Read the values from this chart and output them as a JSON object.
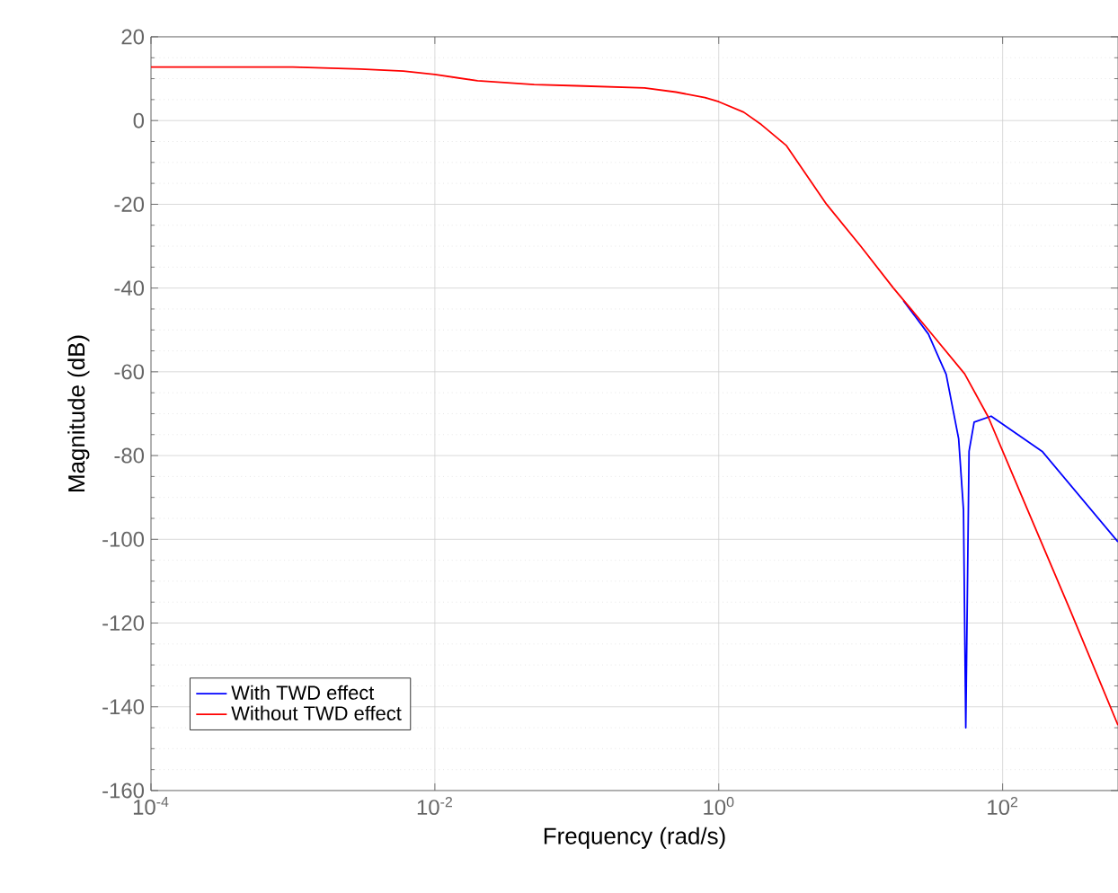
{
  "chart_data": {
    "type": "line",
    "xlabel": "Frequency  (rad/s)",
    "ylabel": "Magnitude (dB)",
    "log": "x",
    "grid": true,
    "legend": "bottom left",
    "line_style": "solid",
    "marker": "none",
    "xlim": [
      0.0001,
      650
    ],
    "ylim": [
      -160,
      20
    ],
    "xticks": [
      {
        "value": 0.0001,
        "label": "10$^{-4}$"
      },
      {
        "value": 0.01,
        "label": "10$^{-2}$"
      },
      {
        "value": 1,
        "label": "10$^{0}$"
      },
      {
        "value": 100,
        "label": "10$^{2}$"
      }
    ],
    "yticks": [
      -160,
      -140,
      -120,
      -100,
      -80,
      -60,
      -40,
      -20,
      0,
      20
    ],
    "series": [
      {
        "name": "With TWD effect",
        "color": "#0000ff",
        "x": [
          20,
          30,
          37,
          40,
          49,
          53,
          55,
          58,
          63,
          83,
          190,
          650
        ],
        "values": [
          -43,
          -51,
          -58,
          -60.6,
          -76,
          -93,
          -145,
          -79,
          -72,
          -70.6,
          -79,
          -100.6
        ]
      },
      {
        "name": "Without TWD effect",
        "color": "#ff0000",
        "x": [
          0.0001,
          0.001,
          0.003,
          0.006,
          0.01,
          0.02,
          0.05,
          0.1,
          0.3,
          0.5,
          0.8,
          1,
          1.5,
          2,
          3,
          5.75,
          10,
          17,
          30,
          54,
          79,
          150,
          300,
          650
        ],
        "values": [
          12.8,
          12.8,
          12.3,
          11.8,
          11,
          9.5,
          8.6,
          8.3,
          7.8,
          6.8,
          5.5,
          4.5,
          2,
          -1,
          -6,
          -20,
          -30,
          -40,
          -50,
          -60.5,
          -70.7,
          -93,
          -117,
          -144.4
        ]
      }
    ]
  }
}
